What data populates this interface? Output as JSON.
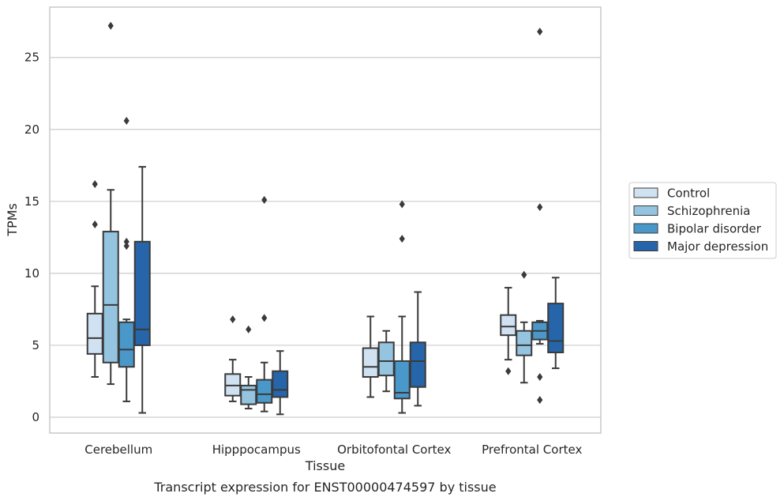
{
  "chart_data": {
    "type": "box",
    "title": "Transcript expression for ENST00000474597 by tissue",
    "xlabel": "Tissue",
    "ylabel": "TPMs",
    "ylim": [
      -1.1,
      28.5
    ],
    "yticks": [
      0,
      5,
      10,
      15,
      20,
      25
    ],
    "grid": "horizontal",
    "legend_position": "right",
    "categories": [
      "Cerebellum",
      "Hipppocampus",
      "Orbitofontal Cortex",
      "Prefrontal Cortex"
    ],
    "series": [
      {
        "name": "Control",
        "color": "#d0e1f2",
        "boxes": [
          {
            "whisker_low": 2.8,
            "q1": 4.4,
            "median": 5.5,
            "q3": 7.2,
            "whisker_high": 9.1,
            "outliers": [
              13.4,
              16.2
            ]
          },
          {
            "whisker_low": 1.1,
            "q1": 1.5,
            "median": 2.2,
            "q3": 3.0,
            "whisker_high": 4.0,
            "outliers": [
              6.8
            ]
          },
          {
            "whisker_low": 1.4,
            "q1": 2.8,
            "median": 3.5,
            "q3": 4.8,
            "whisker_high": 7.0,
            "outliers": []
          },
          {
            "whisker_low": 4.0,
            "q1": 5.7,
            "median": 6.3,
            "q3": 7.1,
            "whisker_high": 9.0,
            "outliers": [
              3.2
            ]
          }
        ]
      },
      {
        "name": "Schizophrenia",
        "color": "#94c4df",
        "boxes": [
          {
            "whisker_low": 2.3,
            "q1": 3.8,
            "median": 7.8,
            "q3": 12.9,
            "whisker_high": 15.8,
            "outliers": [
              27.2
            ]
          },
          {
            "whisker_low": 0.6,
            "q1": 0.9,
            "median": 1.9,
            "q3": 2.2,
            "whisker_high": 2.8,
            "outliers": [
              6.1
            ]
          },
          {
            "whisker_low": 1.8,
            "q1": 2.9,
            "median": 3.9,
            "q3": 5.2,
            "whisker_high": 6.0,
            "outliers": []
          },
          {
            "whisker_low": 2.4,
            "q1": 4.3,
            "median": 5.0,
            "q3": 6.0,
            "whisker_high": 6.6,
            "outliers": [
              9.9
            ]
          }
        ]
      },
      {
        "name": "Bipolar disorder",
        "color": "#4a98c9",
        "boxes": [
          {
            "whisker_low": 1.1,
            "q1": 3.5,
            "median": 4.7,
            "q3": 6.6,
            "whisker_high": 6.8,
            "outliers": [
              11.9,
              12.2,
              20.6
            ]
          },
          {
            "whisker_low": 0.4,
            "q1": 1.0,
            "median": 1.6,
            "q3": 2.6,
            "whisker_high": 3.8,
            "outliers": [
              6.9,
              15.1
            ]
          },
          {
            "whisker_low": 0.3,
            "q1": 1.3,
            "median": 1.7,
            "q3": 3.9,
            "whisker_high": 7.0,
            "outliers": [
              12.4,
              14.8
            ]
          },
          {
            "whisker_low": 5.1,
            "q1": 5.4,
            "median": 6.0,
            "q3": 6.6,
            "whisker_high": 6.7,
            "outliers": [
              1.2,
              2.8,
              14.6,
              26.8
            ]
          }
        ]
      },
      {
        "name": "Major depression",
        "color": "#2665a9",
        "boxes": [
          {
            "whisker_low": 0.3,
            "q1": 5.0,
            "median": 6.1,
            "q3": 12.2,
            "whisker_high": 17.4,
            "outliers": []
          },
          {
            "whisker_low": 0.2,
            "q1": 1.4,
            "median": 1.9,
            "q3": 3.2,
            "whisker_high": 4.6,
            "outliers": []
          },
          {
            "whisker_low": 0.8,
            "q1": 2.1,
            "median": 3.9,
            "q3": 5.2,
            "whisker_high": 8.7,
            "outliers": []
          },
          {
            "whisker_low": 3.4,
            "q1": 4.5,
            "median": 5.3,
            "q3": 7.9,
            "whisker_high": 9.7,
            "outliers": []
          }
        ]
      }
    ]
  }
}
